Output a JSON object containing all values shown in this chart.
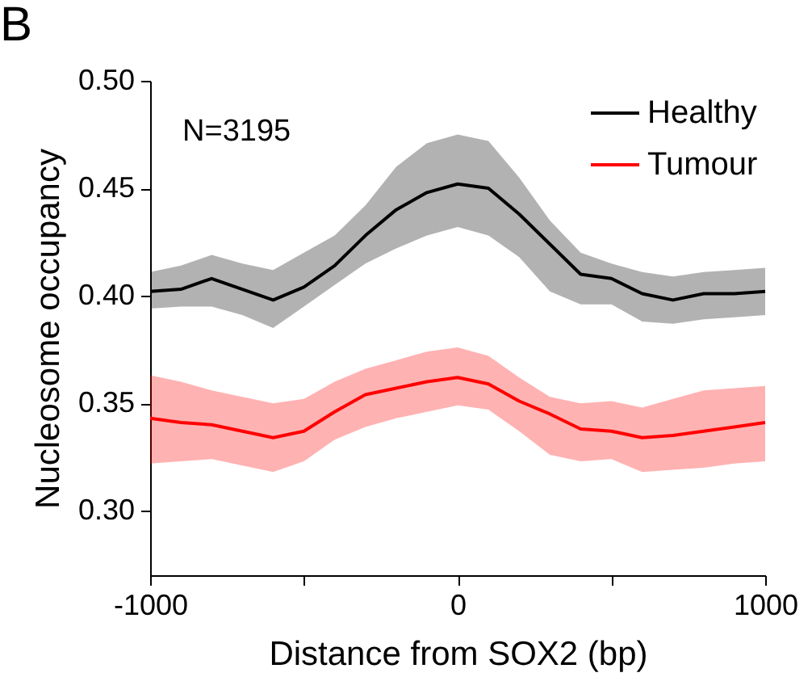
{
  "chart_data": {
    "type": "line",
    "title": "B",
    "xlabel": "Distance from SOX2 (bp)",
    "ylabel": "Nucleosome occupancy",
    "annotations": [
      "N=3195"
    ],
    "x": [
      -1000,
      -900,
      -800,
      -700,
      -600,
      -500,
      -400,
      -300,
      -200,
      -100,
      0,
      100,
      200,
      300,
      400,
      500,
      600,
      700,
      800,
      900,
      1000
    ],
    "series": [
      {
        "name": "Healthy",
        "color": "#000000",
        "values": [
          0.402,
          0.403,
          0.408,
          0.403,
          0.398,
          0.404,
          0.414,
          0.428,
          0.44,
          0.448,
          0.452,
          0.45,
          0.438,
          0.424,
          0.41,
          0.408,
          0.401,
          0.398,
          0.401,
          0.401,
          0.402
        ],
        "lower": [
          0.394,
          0.395,
          0.395,
          0.391,
          0.385,
          0.395,
          0.405,
          0.415,
          0.422,
          0.428,
          0.432,
          0.428,
          0.418,
          0.402,
          0.396,
          0.396,
          0.388,
          0.387,
          0.389,
          0.39,
          0.391
        ],
        "upper": [
          0.411,
          0.414,
          0.419,
          0.415,
          0.412,
          0.42,
          0.428,
          0.442,
          0.46,
          0.471,
          0.475,
          0.472,
          0.455,
          0.435,
          0.42,
          0.415,
          0.411,
          0.409,
          0.411,
          0.412,
          0.413
        ]
      },
      {
        "name": "Tumour",
        "color": "#ff0000",
        "values": [
          0.343,
          0.341,
          0.34,
          0.337,
          0.334,
          0.337,
          0.346,
          0.354,
          0.357,
          0.36,
          0.362,
          0.359,
          0.351,
          0.345,
          0.338,
          0.337,
          0.334,
          0.335,
          0.337,
          0.339,
          0.341
        ],
        "lower": [
          0.322,
          0.323,
          0.324,
          0.321,
          0.318,
          0.323,
          0.333,
          0.339,
          0.343,
          0.346,
          0.349,
          0.347,
          0.337,
          0.326,
          0.323,
          0.324,
          0.318,
          0.319,
          0.32,
          0.322,
          0.323
        ],
        "upper": [
          0.363,
          0.36,
          0.356,
          0.353,
          0.35,
          0.352,
          0.36,
          0.366,
          0.37,
          0.374,
          0.376,
          0.372,
          0.362,
          0.353,
          0.35,
          0.351,
          0.348,
          0.352,
          0.356,
          0.357,
          0.358
        ]
      }
    ],
    "xlim": [
      -1000,
      1000
    ],
    "ylim": [
      0.27,
      0.5
    ],
    "xticks": [
      -1000,
      {
        "value": -500,
        "label": null
      },
      0,
      {
        "value": 500,
        "label": null
      },
      1000
    ],
    "yticks": [
      {
        "value": 0.3,
        "label": "0.30"
      },
      0.35,
      {
        "value": 0.4,
        "label": "0.40"
      },
      0.45,
      {
        "value": 0.5,
        "label": "0.50"
      }
    ],
    "grid": false,
    "legend": "top right",
    "line_style": "solid",
    "marker": "none"
  }
}
